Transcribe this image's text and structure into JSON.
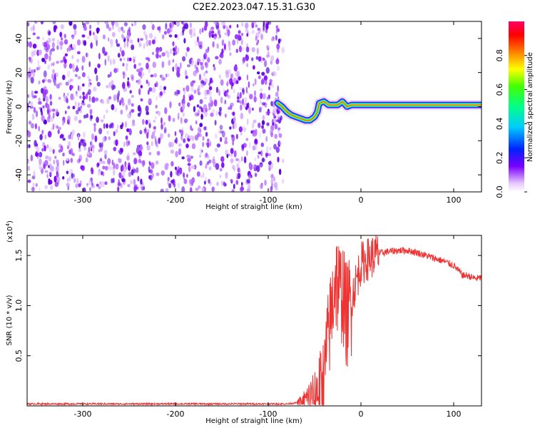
{
  "title": "C2E2.2023.047.15.31.G30",
  "chart_data": [
    {
      "type": "heatmap",
      "title": "C2E2.2023.047.15.31.G30",
      "xlabel": "Height of straight line (km)",
      "ylabel": "Frequency (Hz)",
      "xlim": [
        -360,
        130
      ],
      "ylim": [
        -50,
        50
      ],
      "xticks": [
        -300,
        -200,
        -100,
        0,
        100
      ],
      "yticks": [
        -40,
        -20,
        0,
        20,
        40
      ],
      "noise_region_x": [
        -360,
        -90
      ],
      "signal_track": [
        {
          "x": -90,
          "y": 2
        },
        {
          "x": -85,
          "y": 0
        },
        {
          "x": -80,
          "y": -3
        },
        {
          "x": -75,
          "y": -5
        },
        {
          "x": -70,
          "y": -6
        },
        {
          "x": -65,
          "y": -7
        },
        {
          "x": -60,
          "y": -8
        },
        {
          "x": -55,
          "y": -8
        },
        {
          "x": -50,
          "y": -6
        },
        {
          "x": -47,
          "y": -3
        },
        {
          "x": -45,
          "y": 2
        },
        {
          "x": -40,
          "y": 3
        },
        {
          "x": -35,
          "y": 1
        },
        {
          "x": -30,
          "y": 1
        },
        {
          "x": -25,
          "y": 1
        },
        {
          "x": -20,
          "y": 3
        },
        {
          "x": -15,
          "y": 0
        },
        {
          "x": -10,
          "y": 1
        },
        {
          "x": 0,
          "y": 1
        },
        {
          "x": 20,
          "y": 1
        },
        {
          "x": 40,
          "y": 1
        },
        {
          "x": 60,
          "y": 1
        },
        {
          "x": 80,
          "y": 1
        },
        {
          "x": 100,
          "y": 1
        },
        {
          "x": 130,
          "y": 1
        }
      ],
      "colorbar": {
        "label": "Normalized spectral amplitude",
        "range": [
          0,
          1
        ],
        "ticks": [
          "0.0",
          "0.2",
          "0.4",
          "0.6",
          "0.8"
        ],
        "colormap": "rainbow"
      }
    },
    {
      "type": "line",
      "xlabel": "Height of straight line (km)",
      "ylabel": "SNR (10 * v/v)",
      "exponent_label": "(x10",
      "exponent_power": "4",
      "exponent_close": ")",
      "xlim": [
        -360,
        130
      ],
      "ylim": [
        0,
        1.7
      ],
      "xticks": [
        -300,
        -200,
        -100,
        0,
        100
      ],
      "yticks": [
        "0.5",
        "1.0",
        "1.5"
      ],
      "color": "#ee3333",
      "series": [
        {
          "x": [
            -360,
            -300,
            -250,
            -200,
            -150,
            -100,
            -80,
            -70,
            -60,
            -55,
            -50,
            -45,
            -40,
            -38,
            -35,
            -32,
            -30,
            -28,
            -25,
            -22,
            -20,
            -18,
            -15,
            -12,
            -10,
            -8,
            -5,
            -2,
            0,
            5,
            10,
            15,
            20,
            25,
            30,
            40,
            50,
            60,
            70,
            80,
            90,
            95,
            100,
            105,
            110,
            115,
            120,
            125,
            130
          ],
          "y": [
            0.02,
            0.02,
            0.02,
            0.02,
            0.02,
            0.02,
            0.02,
            0.03,
            0.05,
            0.08,
            0.12,
            0.18,
            0.3,
            0.5,
            0.7,
            0.9,
            1.1,
            1.3,
            1.2,
            1.1,
            1.2,
            1.0,
            0.9,
            1.0,
            1.05,
            1.15,
            1.25,
            1.35,
            1.42,
            1.45,
            1.48,
            1.5,
            1.52,
            1.53,
            1.54,
            1.55,
            1.55,
            1.53,
            1.5,
            1.47,
            1.44,
            1.42,
            1.4,
            1.35,
            1.3,
            1.3,
            1.28,
            1.27,
            1.28
          ]
        }
      ]
    }
  ]
}
